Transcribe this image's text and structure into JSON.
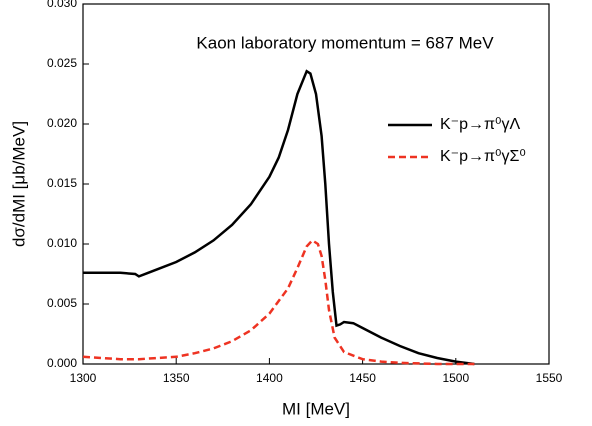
{
  "chart_data": {
    "type": "line",
    "annotation": "Kaon laboratory momentum = 687 MeV",
    "x_label": "MI [MeV]",
    "y_label": "dσ/dMI [μb/MeV]",
    "xlim": [
      1300,
      1550
    ],
    "xticks": [
      1300,
      1350,
      1400,
      1450,
      1500,
      1550
    ],
    "ylim": [
      0,
      0.03
    ],
    "yticks": [
      {
        "value": 0,
        "label": "0.000"
      },
      {
        "value": 0.005,
        "label": "0.005"
      },
      {
        "value": 0.01,
        "label": "0.010"
      },
      {
        "value": 0.015,
        "label": "0.015"
      },
      {
        "value": 0.02,
        "label": "0.020"
      },
      {
        "value": 0.025,
        "label": "0.025"
      },
      {
        "value": 0.03,
        "label": "0.030"
      }
    ],
    "legend": "upper right",
    "series": [
      {
        "name": "K⁻p→π⁰γΛ",
        "color": "#000000",
        "dash": false,
        "x": [
          1300,
          1310,
          1320,
          1328,
          1330,
          1335,
          1340,
          1350,
          1360,
          1370,
          1380,
          1390,
          1400,
          1405,
          1410,
          1415,
          1420,
          1422,
          1425,
          1428,
          1430,
          1432,
          1434,
          1436,
          1438,
          1440,
          1445,
          1450,
          1460,
          1470,
          1480,
          1490,
          1500,
          1510
        ],
        "values": [
          0.0076,
          0.0076,
          0.0076,
          0.0075,
          0.0073,
          0.0076,
          0.0079,
          0.0085,
          0.0093,
          0.0103,
          0.0116,
          0.0133,
          0.0156,
          0.0172,
          0.0195,
          0.0225,
          0.0244,
          0.0242,
          0.0225,
          0.019,
          0.015,
          0.01,
          0.006,
          0.0032,
          0.0033,
          0.0035,
          0.0034,
          0.003,
          0.0022,
          0.0015,
          0.0009,
          0.0005,
          0.0002,
          0
        ]
      },
      {
        "name": "K⁻p→π⁰γΣ⁰",
        "color": "#ee3322",
        "dash": true,
        "x": [
          1300,
          1310,
          1320,
          1330,
          1340,
          1350,
          1360,
          1370,
          1380,
          1390,
          1400,
          1410,
          1415,
          1420,
          1423,
          1426,
          1428,
          1430,
          1432,
          1435,
          1440,
          1450,
          1460,
          1470,
          1490,
          1510
        ],
        "values": [
          0.0006,
          0.0005,
          0.0004,
          0.0004,
          0.0005,
          0.0006,
          0.0009,
          0.0013,
          0.0019,
          0.0028,
          0.0042,
          0.0063,
          0.008,
          0.0098,
          0.0103,
          0.01,
          0.009,
          0.007,
          0.0045,
          0.0022,
          0.001,
          0.0004,
          0.0002,
          0.0001,
          0,
          0
        ]
      }
    ]
  }
}
